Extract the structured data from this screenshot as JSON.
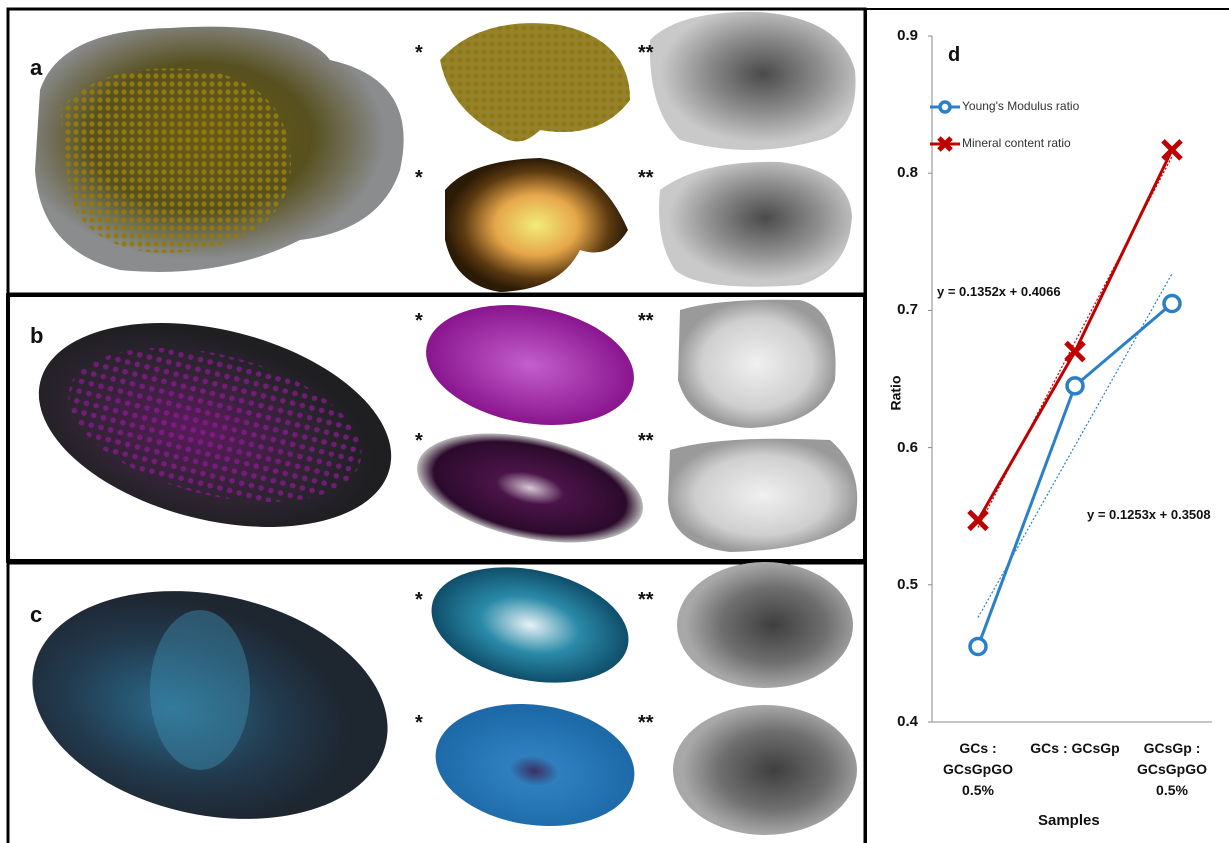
{
  "panels": [
    {
      "label": "a",
      "markers": [
        "*",
        "**",
        "*",
        "**"
      ]
    },
    {
      "label": "b",
      "markers": [
        "*",
        "**",
        "*",
        "**"
      ]
    },
    {
      "label": "c",
      "markers": [
        "*",
        "**",
        "*",
        "**"
      ]
    }
  ],
  "chart_data": {
    "type": "line",
    "panel_label": "d",
    "y_label": "Ratio",
    "x_label": "Samples",
    "categories": [
      "GCs :\nGCsGpGO\n0.5%",
      "GCs : GCsGp",
      "GCsGp :\nGCsGpGO\n0.5%"
    ],
    "series": [
      {
        "name": "Young's Modulus ratio",
        "color": "#2a7fc9",
        "marker": "circle",
        "values": [
          0.455,
          0.645,
          0.705
        ]
      },
      {
        "name": "Mineral content ratio",
        "color": "#c00000",
        "marker": "x",
        "values": [
          0.547,
          0.67,
          0.817
        ]
      }
    ],
    "trendlines": [
      {
        "label": "y = 0.1352x + 0.4066",
        "slope": 0.1352,
        "intercept": 0.4066,
        "series": 1
      },
      {
        "label": "y = 0.1253x + 0.3508",
        "slope": 0.1253,
        "intercept": 0.3508,
        "series": 0
      }
    ],
    "ylim": [
      0.4,
      0.9
    ],
    "yticks": [
      0.4,
      0.5,
      0.6,
      0.7,
      0.8,
      0.9
    ],
    "legend": "upper left",
    "grid": false
  }
}
